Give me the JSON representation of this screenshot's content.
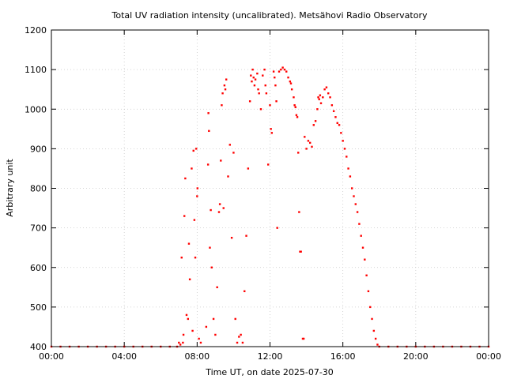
{
  "chart_data": {
    "type": "scatter",
    "title": "Total UV radiation intensity (uncalibrated). Metsähovi Radio Observatory",
    "xlabel": "Time UT, on date 2025-07-30",
    "ylabel": "Arbitrary unit",
    "x_unit": "hours UT",
    "xlim": [
      0,
      24
    ],
    "ylim": [
      400,
      1200
    ],
    "xticks": [
      {
        "value": 0,
        "label": "00:00"
      },
      {
        "value": 4,
        "label": "04:00"
      },
      {
        "value": 8,
        "label": "08:00"
      },
      {
        "value": 12,
        "label": "12:00"
      },
      {
        "value": 16,
        "label": "16:00"
      },
      {
        "value": 20,
        "label": "20:00"
      },
      {
        "value": 24,
        "label": "00:00"
      }
    ],
    "yticks": [
      400,
      500,
      600,
      700,
      800,
      900,
      1000,
      1100,
      1200
    ],
    "grid": true,
    "marker_color": "#ff0000",
    "series": [
      {
        "name": "",
        "points": [
          [
            0.0,
            400
          ],
          [
            0.5,
            400
          ],
          [
            1.0,
            400
          ],
          [
            1.5,
            400
          ],
          [
            2.0,
            400
          ],
          [
            2.5,
            400
          ],
          [
            3.0,
            400
          ],
          [
            3.5,
            400
          ],
          [
            4.0,
            400
          ],
          [
            4.5,
            400
          ],
          [
            5.0,
            400
          ],
          [
            5.5,
            400
          ],
          [
            6.0,
            400
          ],
          [
            6.5,
            400
          ],
          [
            6.9,
            400
          ],
          [
            7.0,
            410
          ],
          [
            7.08,
            405
          ],
          [
            7.15,
            625
          ],
          [
            7.22,
            410
          ],
          [
            7.25,
            430
          ],
          [
            7.3,
            730
          ],
          [
            7.35,
            825
          ],
          [
            7.42,
            480
          ],
          [
            7.5,
            470
          ],
          [
            7.55,
            660
          ],
          [
            7.6,
            570
          ],
          [
            7.7,
            850
          ],
          [
            7.75,
            440
          ],
          [
            7.8,
            895
          ],
          [
            7.85,
            720
          ],
          [
            7.9,
            625
          ],
          [
            7.95,
            900
          ],
          [
            8.0,
            780
          ],
          [
            8.02,
            800
          ],
          [
            8.1,
            420
          ],
          [
            8.2,
            410
          ],
          [
            8.5,
            450
          ],
          [
            8.6,
            860
          ],
          [
            8.62,
            990
          ],
          [
            8.65,
            945
          ],
          [
            8.7,
            650
          ],
          [
            8.75,
            745
          ],
          [
            8.8,
            600
          ],
          [
            8.9,
            470
          ],
          [
            9.0,
            430
          ],
          [
            9.1,
            550
          ],
          [
            9.2,
            740
          ],
          [
            9.25,
            760
          ],
          [
            9.3,
            870
          ],
          [
            9.35,
            1010
          ],
          [
            9.4,
            1040
          ],
          [
            9.45,
            750
          ],
          [
            9.5,
            1060
          ],
          [
            9.55,
            1050
          ],
          [
            9.6,
            1075
          ],
          [
            9.7,
            830
          ],
          [
            9.8,
            910
          ],
          [
            9.9,
            675
          ],
          [
            10.0,
            890
          ],
          [
            10.1,
            470
          ],
          [
            10.2,
            410
          ],
          [
            10.3,
            425
          ],
          [
            10.4,
            430
          ],
          [
            10.5,
            410
          ],
          [
            10.6,
            540
          ],
          [
            10.7,
            680
          ],
          [
            10.8,
            850
          ],
          [
            10.9,
            1020
          ],
          [
            10.95,
            1085
          ],
          [
            11.0,
            1070
          ],
          [
            11.05,
            1100
          ],
          [
            11.1,
            1080
          ],
          [
            11.15,
            1060
          ],
          [
            11.2,
            1075
          ],
          [
            11.3,
            1090
          ],
          [
            11.35,
            1050
          ],
          [
            11.4,
            1040
          ],
          [
            11.5,
            1000
          ],
          [
            11.6,
            1085
          ],
          [
            11.7,
            1100
          ],
          [
            11.75,
            1060
          ],
          [
            11.8,
            1040
          ],
          [
            11.9,
            860
          ],
          [
            12.0,
            1010
          ],
          [
            12.05,
            950
          ],
          [
            12.1,
            940
          ],
          [
            12.2,
            1095
          ],
          [
            12.25,
            1080
          ],
          [
            12.3,
            1060
          ],
          [
            12.35,
            1020
          ],
          [
            12.4,
            700
          ],
          [
            12.5,
            1095
          ],
          [
            12.6,
            1100
          ],
          [
            12.7,
            1105
          ],
          [
            12.8,
            1100
          ],
          [
            12.9,
            1095
          ],
          [
            13.0,
            1080
          ],
          [
            13.1,
            1070
          ],
          [
            13.15,
            1065
          ],
          [
            13.2,
            1050
          ],
          [
            13.3,
            1030
          ],
          [
            13.35,
            1010
          ],
          [
            13.4,
            1005
          ],
          [
            13.45,
            985
          ],
          [
            13.5,
            980
          ],
          [
            13.55,
            890
          ],
          [
            13.6,
            740
          ],
          [
            13.65,
            640
          ],
          [
            13.7,
            640
          ],
          [
            13.8,
            420
          ],
          [
            13.85,
            420
          ],
          [
            13.9,
            930
          ],
          [
            14.0,
            900
          ],
          [
            14.1,
            920
          ],
          [
            14.2,
            915
          ],
          [
            14.3,
            905
          ],
          [
            14.4,
            960
          ],
          [
            14.5,
            970
          ],
          [
            14.6,
            1000
          ],
          [
            14.65,
            1030
          ],
          [
            14.7,
            1025
          ],
          [
            14.75,
            1035
          ],
          [
            14.8,
            1015
          ],
          [
            14.9,
            1030
          ],
          [
            15.0,
            1050
          ],
          [
            15.1,
            1055
          ],
          [
            15.2,
            1040
          ],
          [
            15.3,
            1030
          ],
          [
            15.4,
            1010
          ],
          [
            15.5,
            995
          ],
          [
            15.6,
            980
          ],
          [
            15.7,
            965
          ],
          [
            15.8,
            960
          ],
          [
            15.9,
            940
          ],
          [
            16.0,
            920
          ],
          [
            16.1,
            900
          ],
          [
            16.2,
            880
          ],
          [
            16.3,
            850
          ],
          [
            16.4,
            830
          ],
          [
            16.5,
            800
          ],
          [
            16.6,
            780
          ],
          [
            16.7,
            760
          ],
          [
            16.8,
            740
          ],
          [
            16.9,
            710
          ],
          [
            17.0,
            680
          ],
          [
            17.1,
            650
          ],
          [
            17.2,
            620
          ],
          [
            17.3,
            580
          ],
          [
            17.4,
            540
          ],
          [
            17.5,
            500
          ],
          [
            17.6,
            470
          ],
          [
            17.7,
            440
          ],
          [
            17.8,
            420
          ],
          [
            17.9,
            405
          ],
          [
            18.0,
            400
          ],
          [
            18.5,
            400
          ],
          [
            19.0,
            400
          ],
          [
            19.5,
            400
          ],
          [
            20.0,
            400
          ],
          [
            20.5,
            400
          ],
          [
            21.0,
            400
          ],
          [
            21.5,
            400
          ],
          [
            22.0,
            400
          ],
          [
            22.5,
            400
          ],
          [
            23.0,
            400
          ],
          [
            23.5,
            400
          ],
          [
            24.0,
            400
          ]
        ]
      }
    ]
  }
}
